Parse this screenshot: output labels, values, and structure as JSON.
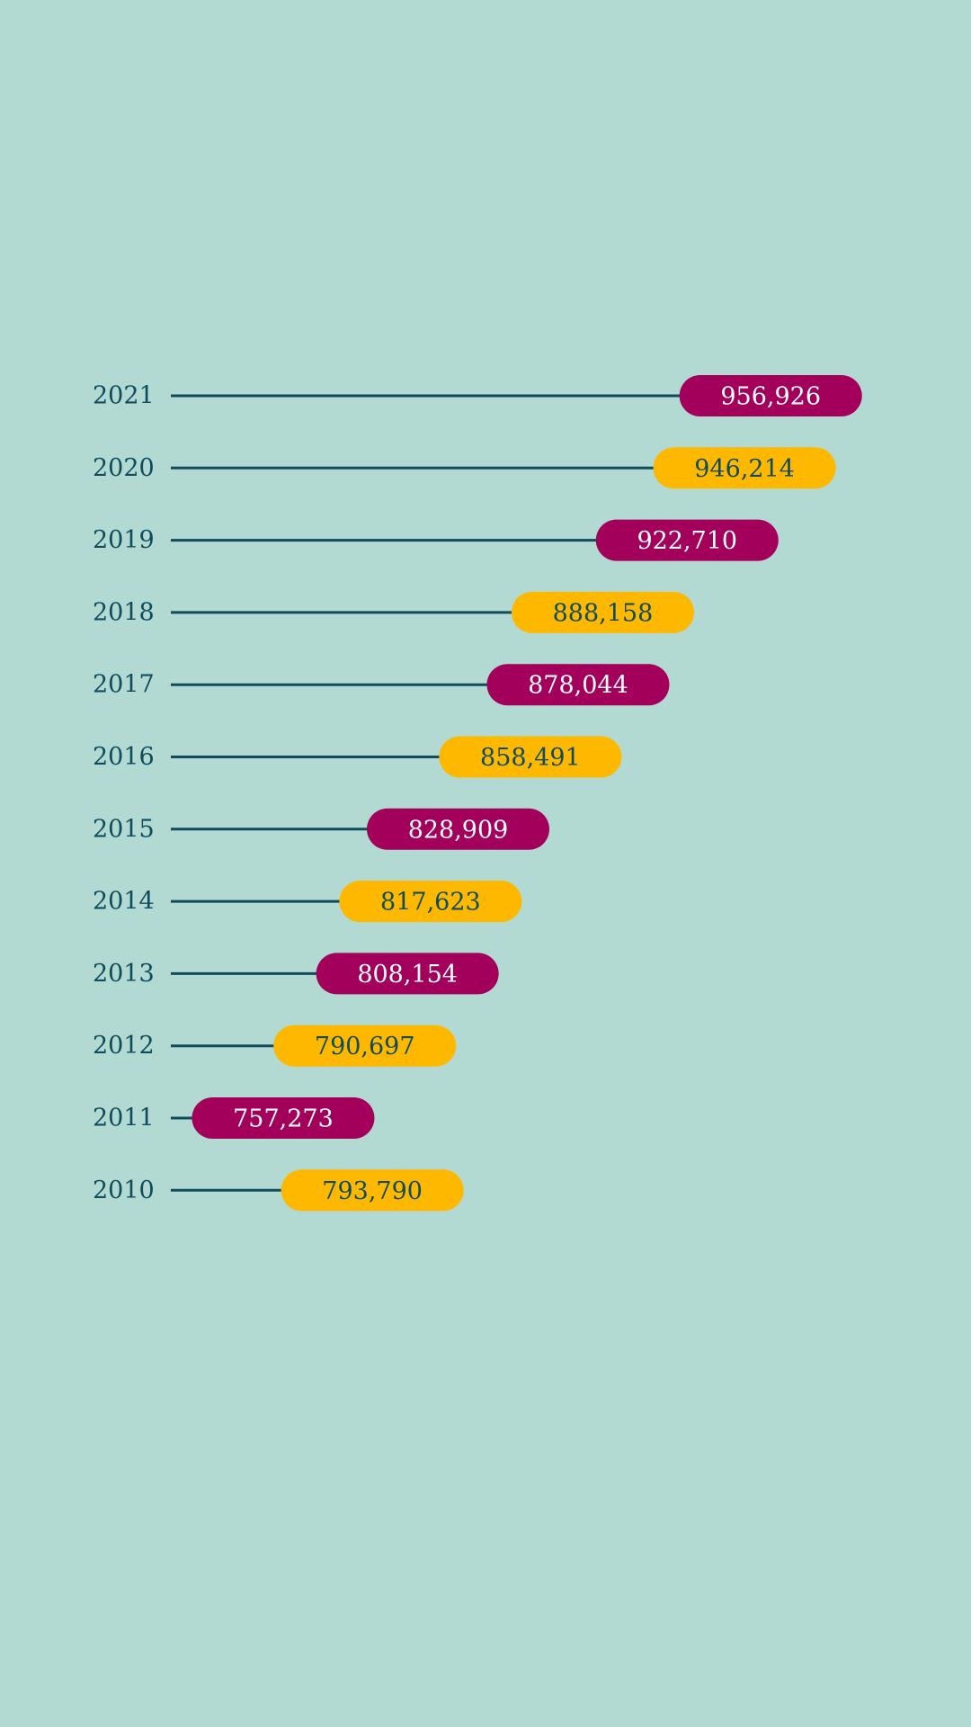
{
  "colors": {
    "background": "#B3DAD2",
    "line": "#0F4C5C",
    "year_text": "#0F4C5C",
    "pill_magenta": "#A2005A",
    "pill_yellow": "#FFB800",
    "text_on_magenta": "#FFFFFF",
    "text_on_yellow": "#0F4C5C"
  },
  "chart_data": {
    "type": "bar",
    "title": "",
    "xlabel": "",
    "ylabel": "",
    "orientation": "horizontal lollipop (pill markers)",
    "categories": [
      "2021",
      "2020",
      "2019",
      "2018",
      "2017",
      "2016",
      "2015",
      "2014",
      "2013",
      "2012",
      "2011",
      "2010"
    ],
    "values": [
      956926,
      946214,
      922710,
      888158,
      878044,
      858491,
      828909,
      817623,
      808154,
      790697,
      757273,
      793790
    ],
    "value_labels": [
      "956,926",
      "946,214",
      "922,710",
      "888,158",
      "878,044",
      "858,491",
      "828,909",
      "817,623",
      "808,154",
      "790,697",
      "757,273",
      "793,790"
    ],
    "pill_colors": [
      "magenta",
      "yellow",
      "magenta",
      "yellow",
      "magenta",
      "yellow",
      "magenta",
      "yellow",
      "magenta",
      "yellow",
      "magenta",
      "yellow"
    ],
    "grid": false,
    "legend": "none"
  }
}
